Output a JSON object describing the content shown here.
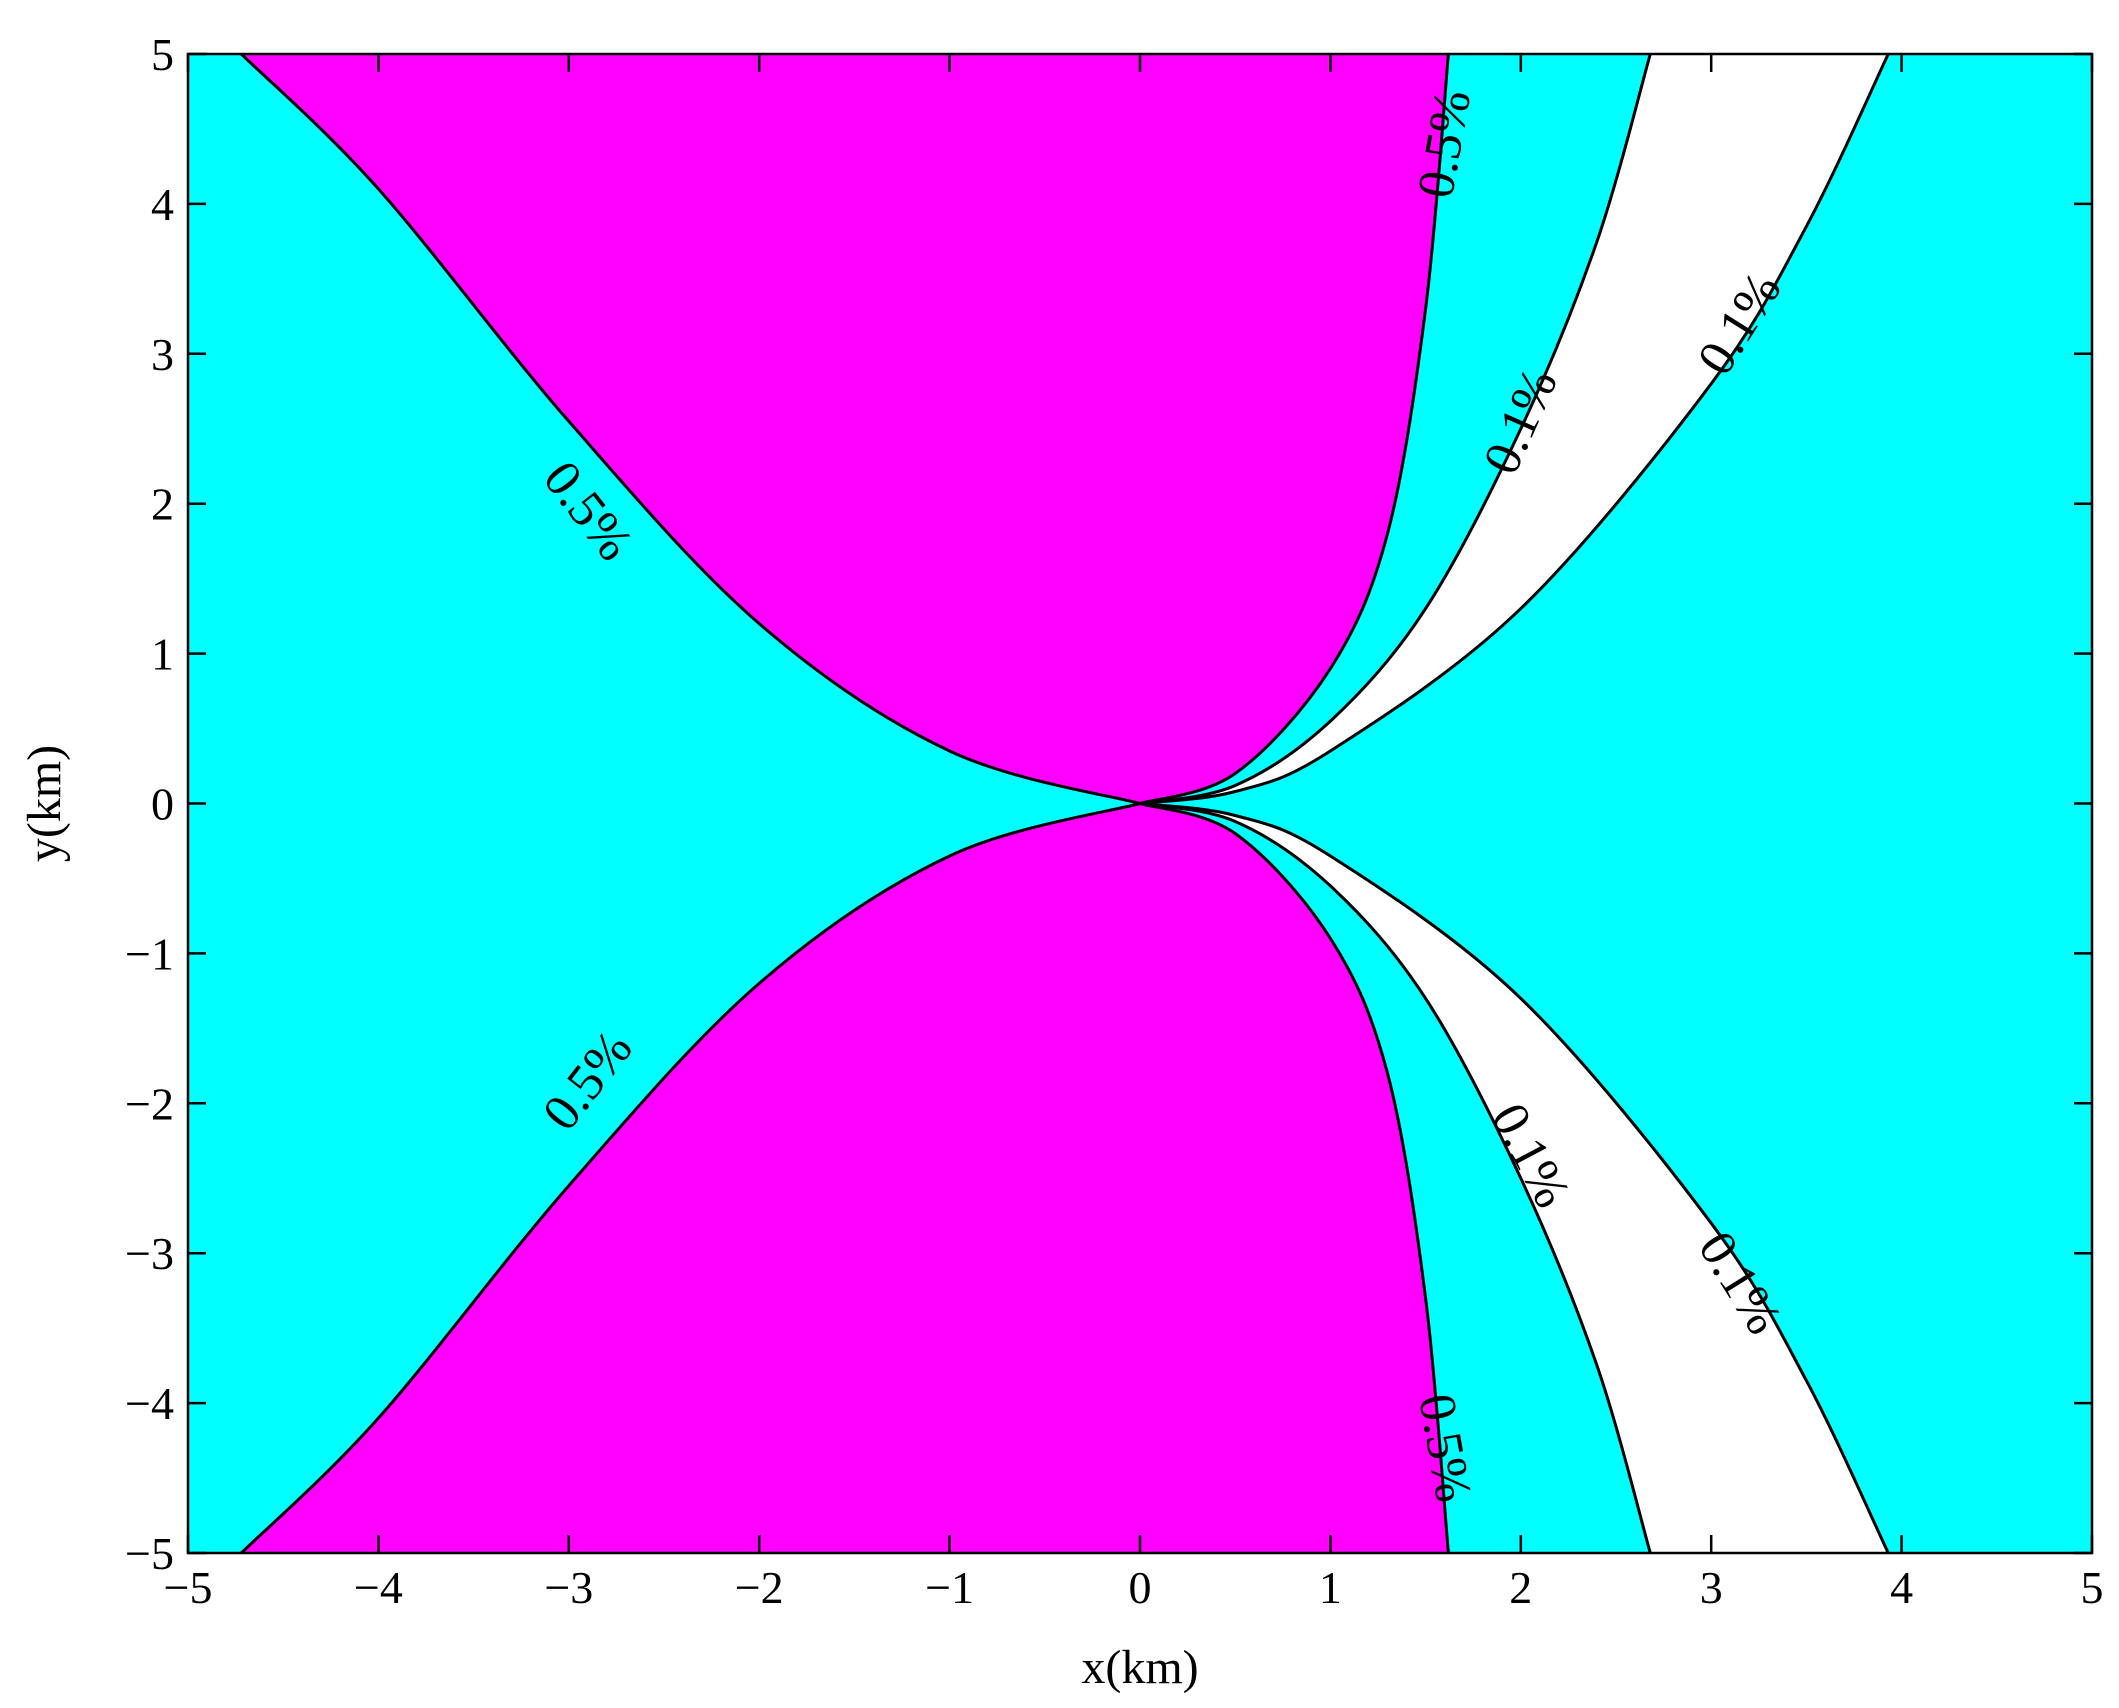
{
  "chart_data": {
    "type": "contour",
    "title": "",
    "xlabel": "x(km)",
    "ylabel": "y(km)",
    "xlim": [
      -5,
      5
    ],
    "ylim": [
      -5,
      5
    ],
    "xticks": [
      -5,
      -4,
      -3,
      -2,
      -1,
      0,
      1,
      2,
      3,
      4,
      5
    ],
    "yticks": [
      -5,
      -4,
      -3,
      -2,
      -1,
      0,
      1,
      2,
      3,
      4,
      5
    ],
    "xtick_labels": [
      "−5",
      "−4",
      "−3",
      "−2",
      "−1",
      "0",
      "1",
      "2",
      "3",
      "4",
      "5"
    ],
    "ytick_labels": [
      "−5",
      "−4",
      "−3",
      "−2",
      "−1",
      "0",
      "1",
      "2",
      "3",
      "4",
      "5"
    ],
    "grid": false,
    "colors": {
      "outer": "#00ffff",
      "above_05": "#ff00ff",
      "between_01": "#ffffff",
      "line": "#000000"
    },
    "contours": [
      {
        "level": "0.5%",
        "name": "left-upper",
        "points": [
          [
            0,
            0
          ],
          [
            -1,
            0.35
          ],
          [
            -2,
            1.2
          ],
          [
            -3,
            2.55
          ],
          [
            -4,
            4.1
          ],
          [
            -4.72,
            5
          ]
        ]
      },
      {
        "level": "0.5%",
        "name": "left-lower",
        "points": [
          [
            0,
            0
          ],
          [
            -1,
            -0.35
          ],
          [
            -2,
            -1.2
          ],
          [
            -3,
            -2.55
          ],
          [
            -4,
            -4.1
          ],
          [
            -4.72,
            -5
          ]
        ]
      },
      {
        "level": "0.5%",
        "name": "right-upper",
        "points": [
          [
            0,
            0
          ],
          [
            0.5,
            0.2
          ],
          [
            1,
            0.9
          ],
          [
            1.3,
            1.8
          ],
          [
            1.5,
            3.3
          ],
          [
            1.62,
            5
          ]
        ]
      },
      {
        "level": "0.5%",
        "name": "right-lower",
        "points": [
          [
            0,
            0
          ],
          [
            0.5,
            -0.2
          ],
          [
            1,
            -0.9
          ],
          [
            1.3,
            -1.8
          ],
          [
            1.5,
            -3.3
          ],
          [
            1.62,
            -5
          ]
        ]
      },
      {
        "level": "0.1%",
        "name": "inner-upper",
        "points": [
          [
            0,
            0
          ],
          [
            0.5,
            0.12
          ],
          [
            1,
            0.55
          ],
          [
            1.5,
            1.3
          ],
          [
            2,
            2.5
          ],
          [
            2.4,
            3.75
          ],
          [
            2.68,
            5
          ]
        ]
      },
      {
        "level": "0.1%",
        "name": "inner-lower",
        "points": [
          [
            0,
            0
          ],
          [
            0.5,
            -0.12
          ],
          [
            1,
            -0.55
          ],
          [
            1.5,
            -1.3
          ],
          [
            2,
            -2.5
          ],
          [
            2.4,
            -3.75
          ],
          [
            2.68,
            -5
          ]
        ]
      },
      {
        "level": "0.1%",
        "name": "outer-upper",
        "points": [
          [
            0,
            0
          ],
          [
            0.5,
            0.08
          ],
          [
            1,
            0.35
          ],
          [
            2,
            1.3
          ],
          [
            3,
            2.8
          ],
          [
            3.5,
            3.85
          ],
          [
            3.93,
            5
          ]
        ]
      },
      {
        "level": "0.1%",
        "name": "outer-lower",
        "points": [
          [
            0,
            0
          ],
          [
            0.5,
            -0.08
          ],
          [
            1,
            -0.35
          ],
          [
            2,
            -1.3
          ],
          [
            3,
            -2.8
          ],
          [
            3.5,
            -3.85
          ],
          [
            3.93,
            -5
          ]
        ]
      }
    ],
    "contour_labels": [
      {
        "text": "0.5%",
        "x": -2.9,
        "y": 1.95,
        "angle": 52
      },
      {
        "text": "0.5%",
        "x": -2.9,
        "y": -1.85,
        "angle": -52
      },
      {
        "text": "0.5%",
        "x": 1.6,
        "y": 4.4,
        "angle": -80
      },
      {
        "text": "0.5%",
        "x": 1.6,
        "y": -4.3,
        "angle": 80
      },
      {
        "text": "0.1%",
        "x": 2.0,
        "y": 2.55,
        "angle": -66
      },
      {
        "text": "0.1%",
        "x": 2.05,
        "y": -2.35,
        "angle": 62
      },
      {
        "text": "0.1%",
        "x": 3.15,
        "y": 3.2,
        "angle": -58
      },
      {
        "text": "0.1%",
        "x": 3.15,
        "y": -3.2,
        "angle": 58
      }
    ]
  }
}
